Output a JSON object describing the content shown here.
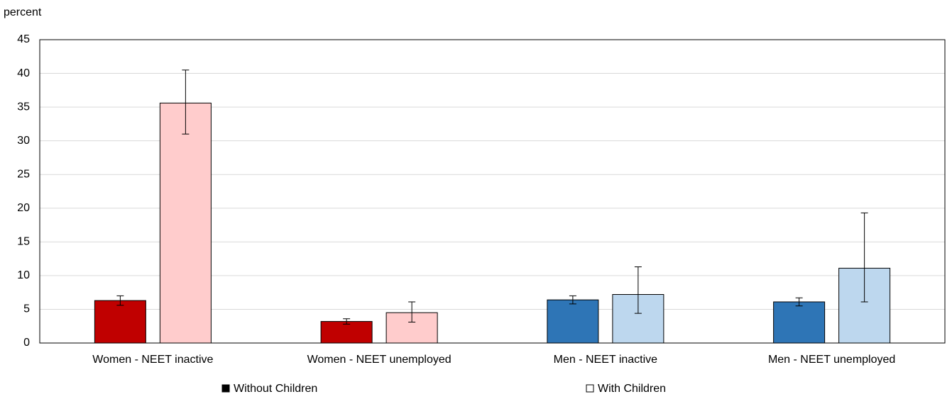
{
  "chart_data": {
    "type": "bar",
    "y_label": "percent",
    "categories": [
      "Women  - NEET inactive",
      "Women  - NEET unemployed",
      "Men  - NEET inactive",
      "Men  - NEET unemployed"
    ],
    "series": [
      {
        "name": "Without Children",
        "legend_color": "#000000",
        "colors": [
          "#c00000",
          "#c00000",
          "#2e75b6",
          "#2e75b6"
        ],
        "values": [
          6.3,
          3.2,
          6.4,
          6.1
        ],
        "ci_low": [
          5.6,
          2.8,
          5.8,
          5.5
        ],
        "ci_high": [
          7.0,
          3.6,
          7.0,
          6.7
        ]
      },
      {
        "name": "With Children",
        "legend_color": "#ffffff",
        "colors": [
          "#ffcccc",
          "#ffcccc",
          "#bdd7ee",
          "#bdd7ee"
        ],
        "values": [
          35.6,
          4.5,
          7.2,
          11.1
        ],
        "ci_low": [
          31.0,
          3.1,
          4.4,
          6.1
        ],
        "ci_high": [
          40.5,
          6.1,
          11.3,
          19.3
        ]
      }
    ],
    "ylim": [
      0,
      45
    ],
    "yticks": [
      0,
      5,
      10,
      15,
      20,
      25,
      30,
      35,
      40,
      45
    ],
    "grid": true
  }
}
